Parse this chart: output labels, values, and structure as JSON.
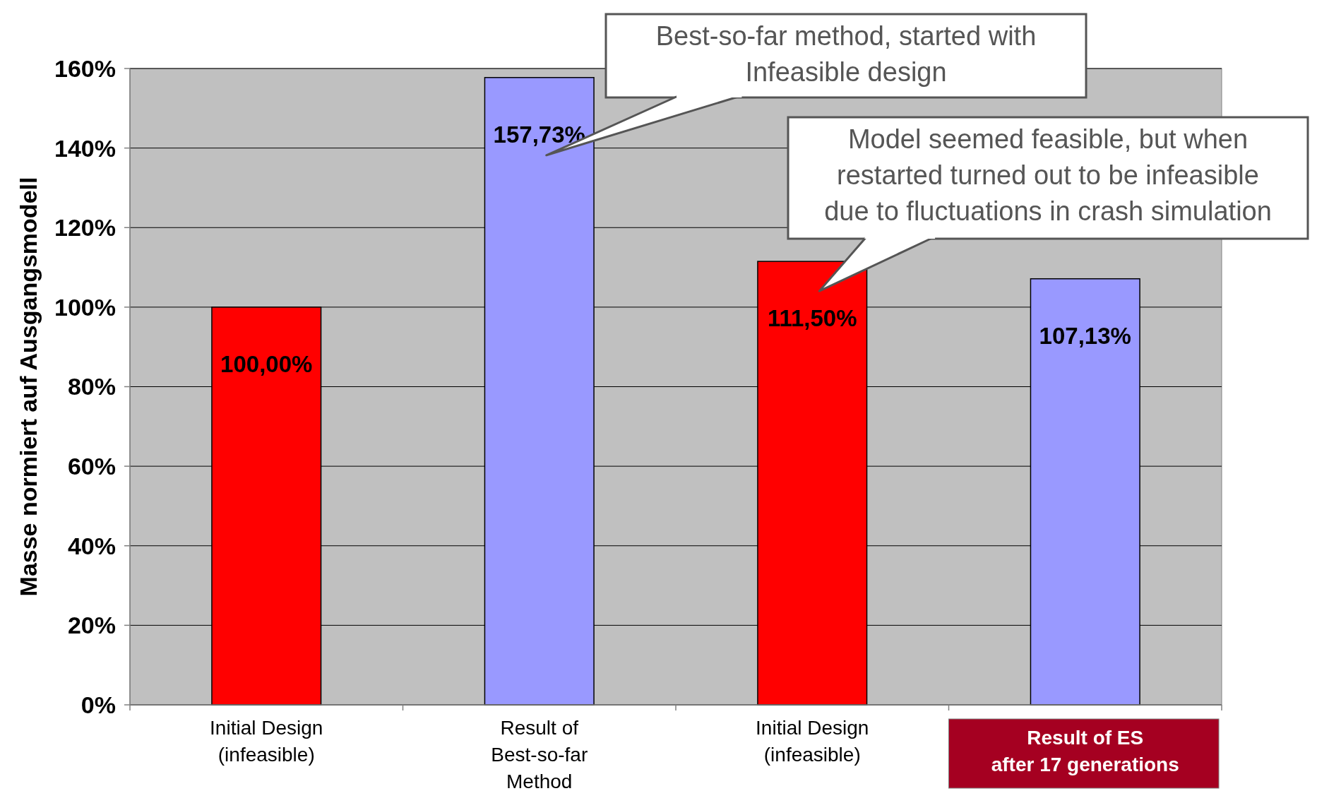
{
  "chart_data": {
    "type": "bar",
    "ylabel": "Masse normiert auf  Ausgangsmodell",
    "categories": [
      "Initial Design\n(infeasible)",
      "Result of\nBest-so-far\nMethod",
      "Initial Design\n(infeasible)",
      "Result of ES\nafter 17 generations"
    ],
    "values": [
      100,
      157.73,
      111.5,
      107.13
    ],
    "colors": [
      "#ff0000",
      "#9999ff",
      "#ff0000",
      "#9999ff"
    ],
    "value_labels": [
      "100,00%",
      "157,73%",
      "111,50%",
      "107,13%"
    ],
    "ylim": [
      0,
      160
    ],
    "yticks": [
      {
        "value": 0,
        "label": "0%"
      },
      {
        "value": 20,
        "label": "20%"
      },
      {
        "value": 40,
        "label": "40%"
      },
      {
        "value": 60,
        "label": "60%"
      },
      {
        "value": 80,
        "label": "80%"
      },
      {
        "value": 100,
        "label": "100%"
      },
      {
        "value": 120,
        "label": "120%"
      },
      {
        "value": 140,
        "label": "140%"
      },
      {
        "value": 160,
        "label": "160%"
      }
    ],
    "grid": "y",
    "annotations": [
      "Best-so-far method, started with\nInfeasible design",
      "Model seemed feasible, but when\nrestarted turned out to be infeasible\ndue to fluctuations in crash simulation"
    ]
  }
}
